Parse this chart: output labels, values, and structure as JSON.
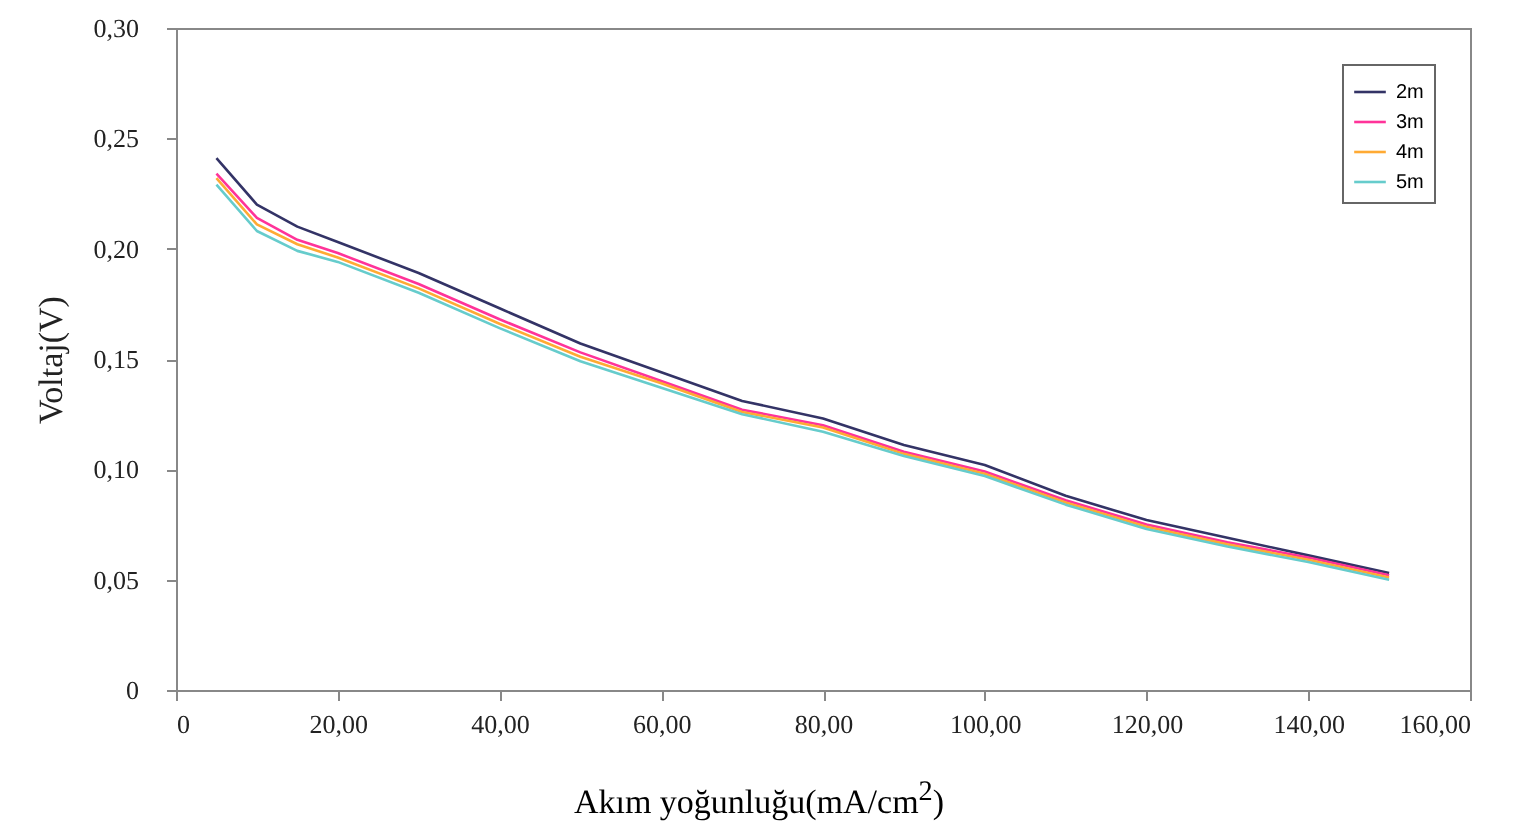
{
  "chart_data": {
    "type": "line",
    "xlabel": "Akım yoğunluğu(mA/cm$^{2}$)",
    "ylabel": "Voltaj(V)",
    "x": [
      5,
      10,
      15,
      20,
      30,
      40,
      50,
      60,
      70,
      80,
      90,
      100,
      110,
      120,
      130,
      140,
      150
    ],
    "series": [
      {
        "name": "2m",
        "color": "#333366",
        "values": [
          0.241,
          0.22,
          0.21,
          0.203,
          0.189,
          0.173,
          0.157,
          0.144,
          0.131,
          0.123,
          0.111,
          0.102,
          0.088,
          0.077,
          0.069,
          0.061,
          0.053
        ]
      },
      {
        "name": "3m",
        "color": "#ff3399",
        "values": [
          0.234,
          0.214,
          0.204,
          0.198,
          0.184,
          0.168,
          0.153,
          0.14,
          0.127,
          0.12,
          0.108,
          0.099,
          0.086,
          0.075,
          0.067,
          0.06,
          0.052
        ]
      },
      {
        "name": "4m",
        "color": "#ffaa33",
        "values": [
          0.232,
          0.211,
          0.202,
          0.196,
          0.182,
          0.166,
          0.151,
          0.139,
          0.126,
          0.119,
          0.107,
          0.098,
          0.085,
          0.074,
          0.066,
          0.059,
          0.051
        ]
      },
      {
        "name": "5m",
        "color": "#66cccc",
        "values": [
          0.229,
          0.208,
          0.199,
          0.194,
          0.18,
          0.164,
          0.149,
          0.137,
          0.125,
          0.117,
          0.106,
          0.097,
          0.084,
          0.073,
          0.065,
          0.058,
          0.05
        ]
      }
    ],
    "xlim": [
      0,
      160
    ],
    "xticks": [
      0,
      {
        "value": 20,
        "label": "20,00"
      },
      {
        "value": 40,
        "label": "40,00"
      },
      {
        "value": 60,
        "label": "60,00"
      },
      {
        "value": 80,
        "label": "80,00"
      },
      {
        "value": 100,
        "label": "100,00"
      },
      {
        "value": 120,
        "label": "120,00"
      },
      {
        "value": 140,
        "label": "140,00"
      },
      {
        "value": 160,
        "label": "160,00"
      }
    ],
    "ylim": [
      0,
      0.3
    ],
    "yticks": [
      0,
      {
        "value": 0.05,
        "label": "0,05"
      },
      {
        "value": 0.1,
        "label": "0,10"
      },
      {
        "value": 0.15,
        "label": "0,15"
      },
      {
        "value": 0.2,
        "label": "0,20"
      },
      {
        "value": 0.25,
        "label": "0,25"
      },
      {
        "value": 0.3,
        "label": "0,30"
      }
    ],
    "grid": false,
    "legend": "top right",
    "marker": "none",
    "line_style": "solid"
  }
}
